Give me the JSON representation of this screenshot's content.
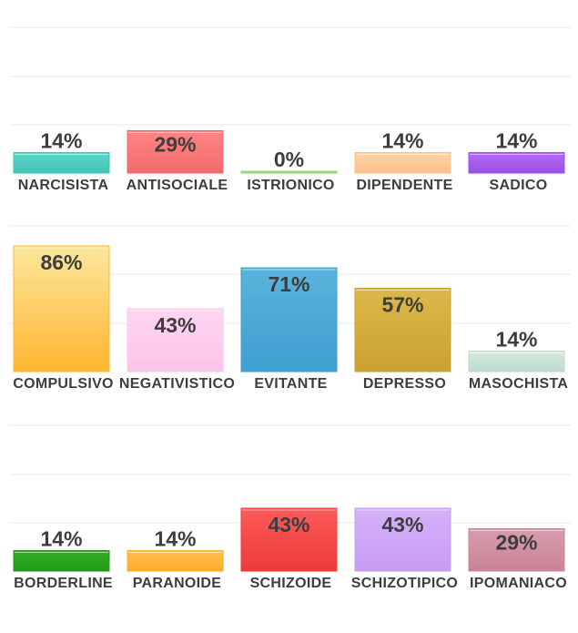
{
  "chart_data": [
    {
      "type": "bar",
      "ylim": [
        0,
        100
      ],
      "categories": [
        "NARCISISTA",
        "ANTISOCIALE",
        "ISTRIONICO",
        "DIPENDENTE",
        "SADICO"
      ],
      "values": [
        14,
        29,
        0,
        14,
        14
      ],
      "value_labels": [
        "14%",
        "29%",
        "0%",
        "14%",
        "14%"
      ],
      "colors": [
        [
          "#5fd6c9",
          "#3fc4b6"
        ],
        [
          "#ff8585",
          "#f26a6a"
        ],
        [
          "#aee59a",
          "#8cd27a"
        ],
        [
          "#ffd3a6",
          "#ffc08a"
        ],
        [
          "#b26af2",
          "#9a4fe4"
        ]
      ]
    },
    {
      "type": "bar",
      "ylim": [
        0,
        100
      ],
      "categories": [
        "COMPULSIVO",
        "NEGATIVISTICO",
        "EVITANTE",
        "DEPRESSO",
        "MASOCHISTA"
      ],
      "values": [
        86,
        43,
        71,
        57,
        14
      ],
      "value_labels": [
        "86%",
        "43%",
        "71%",
        "57%",
        "14%"
      ],
      "colors": [
        [
          "#fbe79c",
          "#ffb530"
        ],
        [
          "#ffd6f1",
          "#fcc4ea"
        ],
        [
          "#5ab4dc",
          "#3f9fd0"
        ],
        [
          "#dcb84a",
          "#c9a231"
        ],
        [
          "#d4eadf",
          "#bedcce"
        ]
      ]
    },
    {
      "type": "bar",
      "ylim": [
        0,
        100
      ],
      "categories": [
        "BORDERLINE",
        "PARANOIDE",
        "SCHIZOIDE",
        "SCHIZOTIPICO",
        "IPOMANIACO"
      ],
      "values": [
        14,
        14,
        43,
        43,
        29
      ],
      "value_labels": [
        "14%",
        "14%",
        "43%",
        "43%",
        "29%"
      ],
      "colors": [
        [
          "#31b023",
          "#25971a"
        ],
        [
          "#ffc24a",
          "#ffaa2e"
        ],
        [
          "#ff5a5a",
          "#ec3a3a"
        ],
        [
          "#d5b1fa",
          "#c79cf4"
        ],
        [
          "#d89cad",
          "#c98497"
        ]
      ]
    }
  ]
}
